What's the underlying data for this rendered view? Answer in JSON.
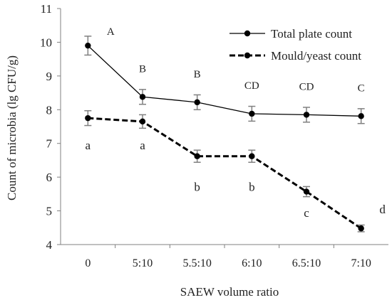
{
  "chart_data": {
    "type": "line",
    "title": "",
    "xlabel": "SAEW volume ratio",
    "ylabel": "Count of microbia (lg CFU/g)",
    "categories": [
      "0",
      "5:10",
      "5.5:10",
      "6:10",
      "6.5:10",
      "7:10"
    ],
    "ylim": [
      4,
      11
    ],
    "yticks": [
      4,
      5,
      6,
      7,
      8,
      9,
      10,
      11
    ],
    "grid": false,
    "legend_position": "top-right",
    "series": [
      {
        "name": "Total plate count",
        "style": "solid",
        "values": [
          9.9,
          8.38,
          8.22,
          7.88,
          7.85,
          7.81
        ],
        "errors": [
          0.28,
          0.22,
          0.22,
          0.22,
          0.22,
          0.22
        ],
        "letters": [
          "A",
          "B",
          "B",
          "CD",
          "CD",
          "C"
        ]
      },
      {
        "name": "Mould/yeast count",
        "style": "dashed",
        "values": [
          7.75,
          7.65,
          6.62,
          6.62,
          5.57,
          4.48
        ],
        "errors": [
          0.22,
          0.2,
          0.18,
          0.18,
          0.15,
          0.1
        ],
        "letters": [
          "a",
          "a",
          "b",
          "b",
          "c",
          "d"
        ]
      }
    ],
    "colors": {
      "line": "#000000",
      "axis": "#808080",
      "text": "#222222"
    }
  }
}
